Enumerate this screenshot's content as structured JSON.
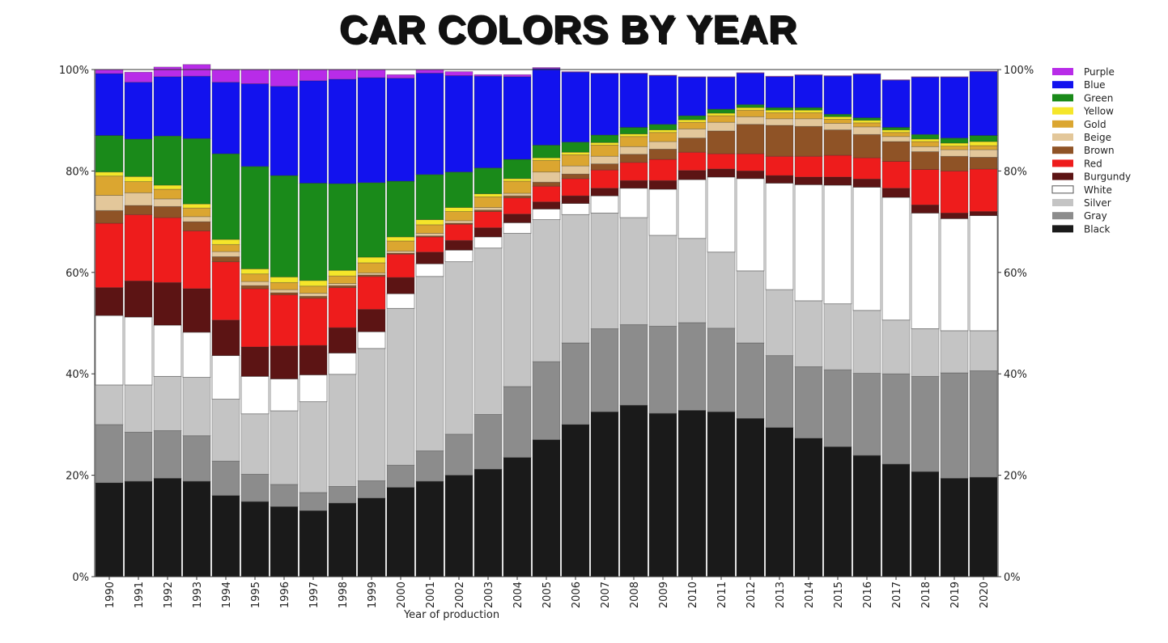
{
  "chart_data": {
    "type": "bar",
    "stacked": true,
    "title": "CAR COLORS BY YEAR",
    "xlabel": "Year of production",
    "ylabel": "",
    "ylim": [
      0,
      100
    ],
    "yticks": [
      "0%",
      "20%",
      "40%",
      "60%",
      "80%",
      "100%"
    ],
    "legend_position": "right",
    "categories": [
      "1990",
      "1991",
      "1992",
      "1993",
      "1994",
      "1995",
      "1996",
      "1997",
      "1998",
      "1999",
      "2000",
      "2001",
      "2002",
      "2003",
      "2004",
      "2005",
      "2006",
      "2007",
      "2008",
      "2009",
      "2010",
      "2011",
      "2012",
      "2013",
      "2014",
      "2015",
      "2016",
      "2017",
      "2018",
      "2019",
      "2020"
    ],
    "series": [
      {
        "name": "Black",
        "color": "#1a1a1a",
        "values": [
          18.5,
          18.8,
          19.4,
          18.8,
          16.0,
          14.8,
          13.8,
          13.0,
          14.5,
          15.5,
          17.6,
          18.8,
          20.0,
          21.2,
          23.5,
          27.0,
          30.0,
          32.5,
          33.8,
          32.2,
          32.8,
          32.5,
          31.2,
          29.4,
          27.3,
          25.6,
          23.9,
          22.2,
          20.7,
          19.4,
          19.6
        ]
      },
      {
        "name": "Gray",
        "color": "#8c8c8c",
        "values": [
          11.5,
          9.7,
          9.4,
          9.0,
          6.8,
          5.4,
          4.4,
          3.6,
          3.3,
          3.4,
          4.4,
          6.0,
          8.1,
          10.8,
          14.0,
          15.4,
          16.1,
          16.4,
          15.9,
          17.2,
          17.3,
          16.5,
          14.9,
          14.2,
          14.1,
          15.2,
          16.2,
          17.8,
          18.8,
          20.8,
          21.0
        ]
      },
      {
        "name": "Silver",
        "color": "#c4c4c4",
        "values": [
          7.8,
          9.3,
          10.7,
          11.5,
          12.2,
          11.9,
          14.5,
          17.9,
          22.1,
          26.1,
          30.9,
          34.4,
          34.0,
          32.8,
          30.2,
          28.0,
          25.3,
          22.8,
          21.1,
          17.9,
          16.6,
          15.0,
          14.2,
          13.0,
          13.0,
          13.0,
          12.4,
          10.6,
          9.4,
          8.3,
          7.9
        ]
      },
      {
        "name": "White",
        "color": "#ffffff",
        "values": [
          13.7,
          13.4,
          10.1,
          8.9,
          8.6,
          7.4,
          6.3,
          5.3,
          4.2,
          3.3,
          2.9,
          2.5,
          2.3,
          2.2,
          2.1,
          2.1,
          2.2,
          3.4,
          5.8,
          9.1,
          11.6,
          14.8,
          18.2,
          21.0,
          22.9,
          23.4,
          24.3,
          24.2,
          22.8,
          22.1,
          22.7
        ]
      },
      {
        "name": "Burgundy",
        "color": "#5c1414",
        "values": [
          5.5,
          7.1,
          8.4,
          8.6,
          7.0,
          5.8,
          6.5,
          5.8,
          5.0,
          4.4,
          3.2,
          2.3,
          1.9,
          1.8,
          1.7,
          1.4,
          1.5,
          1.5,
          1.5,
          1.7,
          1.8,
          1.6,
          1.5,
          1.5,
          1.5,
          1.6,
          1.6,
          1.8,
          1.6,
          1.1,
          0.8
        ]
      },
      {
        "name": "Red",
        "color": "#ee1c1c",
        "values": [
          12.7,
          13.1,
          12.8,
          11.4,
          11.5,
          11.5,
          10.1,
          9.3,
          7.9,
          6.5,
          4.6,
          3.0,
          3.2,
          3.2,
          3.2,
          3.1,
          3.4,
          3.6,
          3.6,
          4.2,
          3.6,
          3.0,
          3.4,
          3.8,
          4.1,
          4.3,
          4.2,
          5.3,
          7.0,
          8.3,
          8.4
        ]
      },
      {
        "name": "Brown",
        "color": "#8f5326",
        "values": [
          2.5,
          1.8,
          2.2,
          1.8,
          1.0,
          0.6,
          0.4,
          0.4,
          0.4,
          0.3,
          0.2,
          0.2,
          0.2,
          0.3,
          0.4,
          0.8,
          0.9,
          1.2,
          1.6,
          2.0,
          2.8,
          4.5,
          5.8,
          6.1,
          5.9,
          5.0,
          4.6,
          3.9,
          3.5,
          2.9,
          2.3
        ]
      },
      {
        "name": "Beige",
        "color": "#e3c79a",
        "values": [
          3.0,
          2.5,
          1.5,
          1.0,
          1.0,
          0.8,
          0.6,
          0.6,
          0.4,
          0.4,
          0.4,
          0.5,
          0.5,
          0.5,
          0.5,
          2.0,
          1.6,
          1.5,
          1.5,
          1.5,
          1.8,
          1.7,
          1.5,
          1.3,
          1.5,
          1.3,
          1.5,
          1.0,
          1.0,
          1.3,
          1.5
        ]
      },
      {
        "name": "Gold",
        "color": "#dba630",
        "values": [
          3.8,
          2.2,
          1.9,
          1.7,
          1.4,
          1.5,
          1.4,
          1.4,
          1.5,
          2.0,
          2.0,
          1.7,
          1.8,
          2.1,
          2.4,
          2.3,
          2.2,
          2.2,
          2.0,
          1.8,
          1.3,
          1.3,
          1.3,
          1.2,
          1.2,
          0.8,
          0.8,
          0.8,
          1.0,
          0.7,
          0.8
        ]
      },
      {
        "name": "Yellow",
        "color": "#f5e62a",
        "values": [
          0.8,
          1.0,
          0.8,
          0.8,
          1.0,
          1.0,
          1.1,
          1.1,
          1.1,
          1.1,
          0.8,
          1.0,
          0.8,
          0.6,
          0.5,
          0.5,
          0.5,
          0.5,
          0.5,
          0.5,
          0.5,
          0.5,
          0.5,
          0.5,
          0.5,
          0.5,
          0.5,
          0.5,
          0.5,
          0.6,
          0.8
        ]
      },
      {
        "name": "Green",
        "color": "#1a8a1a",
        "values": [
          7.2,
          7.4,
          9.7,
          12.9,
          16.9,
          20.2,
          20.0,
          19.2,
          17.1,
          14.7,
          11.0,
          8.9,
          7.0,
          5.1,
          3.8,
          2.5,
          2.0,
          1.5,
          1.3,
          1.1,
          0.8,
          0.8,
          0.6,
          0.5,
          0.5,
          0.5,
          0.5,
          0.5,
          0.9,
          1.0,
          1.2
        ]
      },
      {
        "name": "Blue",
        "color": "#1212ee",
        "values": [
          12.2,
          11.2,
          11.7,
          12.3,
          14.1,
          16.3,
          17.6,
          20.2,
          20.6,
          20.7,
          20.3,
          20.0,
          19.0,
          18.1,
          16.3,
          15.1,
          13.8,
          12.1,
          10.6,
          9.6,
          7.6,
          6.3,
          6.2,
          6.1,
          6.4,
          7.5,
          8.6,
          9.3,
          11.3,
          12.0,
          12.6
        ]
      },
      {
        "name": "Purple",
        "color": "#b82ce8",
        "values": [
          0.8,
          2.0,
          1.9,
          2.3,
          2.5,
          2.8,
          3.3,
          2.2,
          1.9,
          1.6,
          0.7,
          0.7,
          0.8,
          0.3,
          0.4,
          0.2,
          0.1,
          0.1,
          0.1,
          0.1,
          0.1,
          0.1,
          0.1,
          0.1,
          0.1,
          0.1,
          0.1,
          0.1,
          0.1,
          0.1,
          0.1
        ]
      }
    ]
  }
}
